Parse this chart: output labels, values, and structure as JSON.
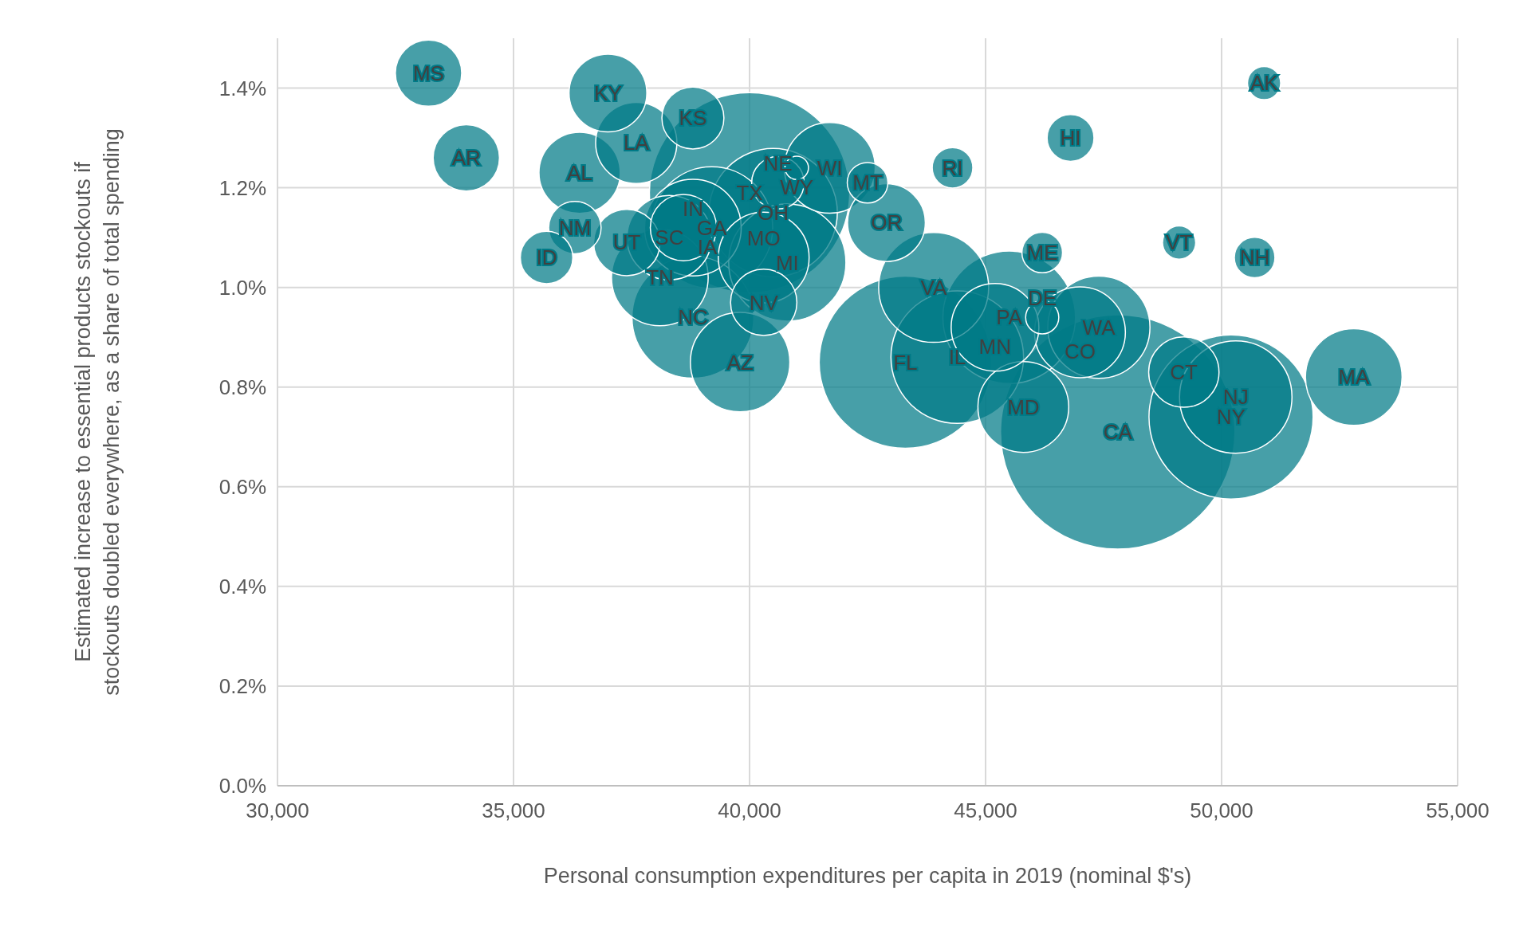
{
  "chart_data": {
    "type": "bubble",
    "xlabel": "Personal consumption expenditures per capita in 2019 (nominal $'s)",
    "ylabel": "Estimated increase to essential products stockouts if stockouts doubled everywhere, as a share of total spending",
    "xlim": [
      30000,
      55000
    ],
    "xticks": [
      {
        "value": 30000,
        "label": "30,000"
      },
      {
        "value": 35000,
        "label": "35,000"
      },
      {
        "value": 40000,
        "label": "40,000"
      },
      {
        "value": 45000,
        "label": "45,000"
      },
      {
        "value": 50000,
        "label": "50,000"
      },
      {
        "value": 55000,
        "label": "55,000"
      }
    ],
    "ylim": [
      0,
      1.5
    ],
    "yticks": [
      {
        "value": 0,
        "label": "0.0%"
      },
      {
        "value": 0.2,
        "label": "0.2%"
      },
      {
        "value": 0.4,
        "label": "0.4%"
      },
      {
        "value": 0.6,
        "label": "0.6%"
      },
      {
        "value": 0.8,
        "label": "0.8%"
      },
      {
        "value": 1.0,
        "label": "1.0%"
      },
      {
        "value": 1.2,
        "label": "1.2%"
      },
      {
        "value": 1.4,
        "label": "1.4%"
      }
    ],
    "grid": true,
    "series": [
      {
        "color": "#007a87",
        "x": [
          47800,
          40000,
          43300,
          50200,
          45500,
          44400,
          40500,
          39200,
          38800,
          40800,
          50300,
          43900,
          47400,
          39800,
          52800,
          38100,
          38800,
          40300,
          45800,
          41700,
          47000,
          45200,
          38300,
          36400,
          37600,
          37000,
          42900,
          49200,
          37400,
          38600,
          40300,
          34000,
          33200,
          38800,
          36300,
          40600,
          35700,
          46800,
          50700,
          46200,
          42500,
          44300,
          46200,
          50900,
          49100,
          41000
        ],
        "values": [
          0.71,
          1.19,
          0.85,
          0.74,
          0.94,
          0.86,
          1.15,
          1.12,
          0.94,
          1.05,
          0.78,
          1.0,
          0.92,
          0.85,
          0.82,
          1.02,
          1.12,
          1.06,
          0.76,
          1.24,
          0.91,
          0.92,
          1.1,
          1.23,
          1.29,
          1.39,
          1.13,
          0.83,
          1.09,
          1.12,
          0.97,
          1.26,
          1.43,
          1.34,
          1.12,
          1.21,
          1.06,
          1.3,
          1.06,
          1.07,
          1.21,
          1.24,
          0.94,
          1.41,
          1.09,
          1.24
        ],
        "sizes": [
          1,
          0.73,
          0.54,
          0.49,
          0.32,
          0.32,
          0.3,
          0.27,
          0.27,
          0.25,
          0.23,
          0.22,
          0.19,
          0.18,
          0.17,
          0.17,
          0.17,
          0.15,
          0.15,
          0.15,
          0.15,
          0.14,
          0.13,
          0.12,
          0.12,
          0.11,
          0.11,
          0.09,
          0.08,
          0.08,
          0.08,
          0.08,
          0.08,
          0.07,
          0.05,
          0.05,
          0.05,
          0.04,
          0.03,
          0.03,
          0.03,
          0.03,
          0.02,
          0.02,
          0.02,
          0.01
        ]
      }
    ],
    "annotations": [
      {
        "text": "CA",
        "x": 47800,
        "y": 0.71
      },
      {
        "text": "TX",
        "x": 40000,
        "y": 1.19
      },
      {
        "text": "FL",
        "x": 43300,
        "y": 0.85
      },
      {
        "text": "NY",
        "x": 50200,
        "y": 0.74
      },
      {
        "text": "PA",
        "x": 45500,
        "y": 0.94
      },
      {
        "text": "IL",
        "x": 44400,
        "y": 0.86
      },
      {
        "text": "OH",
        "x": 40500,
        "y": 1.15
      },
      {
        "text": "GA",
        "x": 39200,
        "y": 1.12
      },
      {
        "text": "NC",
        "x": 38800,
        "y": 0.94
      },
      {
        "text": "MI",
        "x": 40800,
        "y": 1.05
      },
      {
        "text": "NJ",
        "x": 50300,
        "y": 0.78
      },
      {
        "text": "VA",
        "x": 43900,
        "y": 1.0
      },
      {
        "text": "WA",
        "x": 47400,
        "y": 0.92
      },
      {
        "text": "AZ",
        "x": 39800,
        "y": 0.85
      },
      {
        "text": "MA",
        "x": 52800,
        "y": 0.82
      },
      {
        "text": "TN",
        "x": 38100,
        "y": 1.02
      },
      {
        "text": "IN",
        "x": 38800,
        "y": 1.12
      },
      {
        "text": "MO",
        "x": 40300,
        "y": 1.06
      },
      {
        "text": "MD",
        "x": 45800,
        "y": 0.76
      },
      {
        "text": "WI",
        "x": 41700,
        "y": 1.24
      },
      {
        "text": "CO",
        "x": 47000,
        "y": 0.91
      },
      {
        "text": "MN",
        "x": 45200,
        "y": 0.92
      },
      {
        "text": "SC",
        "x": 38300,
        "y": 1.1
      },
      {
        "text": "AL",
        "x": 36400,
        "y": 1.23
      },
      {
        "text": "LA",
        "x": 37600,
        "y": 1.29
      },
      {
        "text": "KY",
        "x": 37000,
        "y": 1.39
      },
      {
        "text": "OR",
        "x": 42900,
        "y": 1.13
      },
      {
        "text": "CT",
        "x": 49200,
        "y": 0.83
      },
      {
        "text": "UT",
        "x": 37400,
        "y": 1.09
      },
      {
        "text": "IA",
        "x": 38600,
        "y": 1.12
      },
      {
        "text": "NV",
        "x": 40300,
        "y": 0.97
      },
      {
        "text": "AR",
        "x": 34000,
        "y": 1.26
      },
      {
        "text": "MS",
        "x": 33200,
        "y": 1.43
      },
      {
        "text": "KS",
        "x": 38800,
        "y": 1.34
      },
      {
        "text": "NM",
        "x": 36300,
        "y": 1.12
      },
      {
        "text": "NE",
        "x": 40600,
        "y": 1.21
      },
      {
        "text": "ID",
        "x": 35700,
        "y": 1.06
      },
      {
        "text": "HI",
        "x": 46800,
        "y": 1.3
      },
      {
        "text": "NH",
        "x": 50700,
        "y": 1.06
      },
      {
        "text": "ME",
        "x": 46200,
        "y": 1.07
      },
      {
        "text": "MT",
        "x": 42500,
        "y": 1.21
      },
      {
        "text": "RI",
        "x": 44300,
        "y": 1.24
      },
      {
        "text": "DE",
        "x": 46200,
        "y": 0.94
      },
      {
        "text": "AK",
        "x": 50900,
        "y": 1.41
      },
      {
        "text": "VT",
        "x": 49100,
        "y": 1.09
      },
      {
        "text": "WY",
        "x": 41000,
        "y": 1.24
      }
    ]
  }
}
